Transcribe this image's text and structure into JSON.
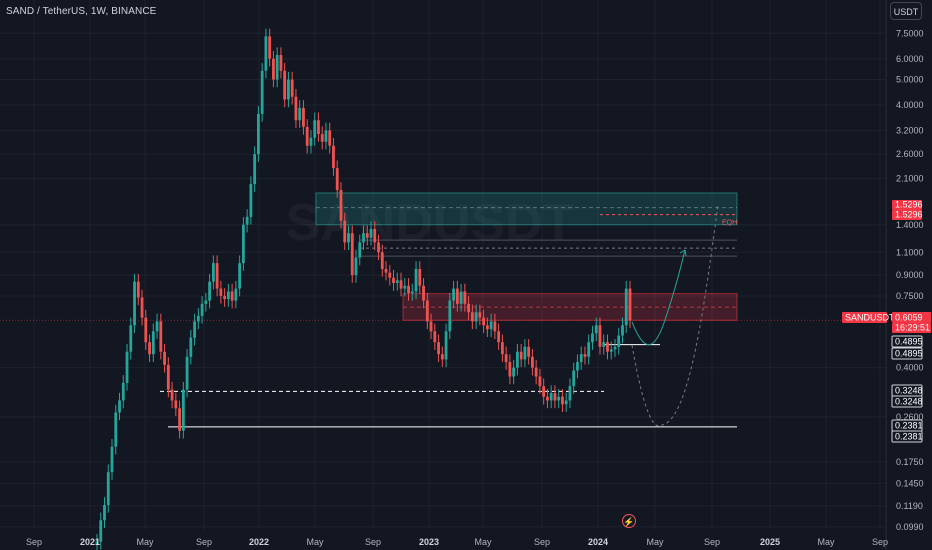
{
  "header": {
    "title": "SAND / TetherUS, 1W, BINANCE",
    "currency_button": "USDT"
  },
  "colors": {
    "up": "#26a69a",
    "down": "#ef5350",
    "background": "#131722",
    "supply_zone": "#26a69a",
    "demand_zone": "#f23645"
  },
  "chart_data": {
    "type": "candlestick",
    "symbol": "SANDUSDT",
    "y_scale": "log",
    "ylim": [
      0.0875,
      9.2
    ],
    "y_ticks": [
      "7.5000",
      "6.0000",
      "5.0000",
      "4.0000",
      "3.2000",
      "2.6000",
      "2.1000",
      "1.4000",
      "1.1000",
      "0.9000",
      "0.7500",
      "0.4000",
      "0.2600",
      "0.1750",
      "0.1450",
      "0.1190",
      "0.0990"
    ],
    "x_ticks": [
      {
        "label": "Sep",
        "year": false
      },
      {
        "label": "2021",
        "year": true
      },
      {
        "label": "May",
        "year": false
      },
      {
        "label": "Sep",
        "year": false
      },
      {
        "label": "2022",
        "year": true
      },
      {
        "label": "May",
        "year": false
      },
      {
        "label": "Sep",
        "year": false
      },
      {
        "label": "2023",
        "year": true
      },
      {
        "label": "May",
        "year": false
      },
      {
        "label": "Sep",
        "year": false
      },
      {
        "label": "2024",
        "year": true
      },
      {
        "label": "May",
        "year": false
      },
      {
        "label": "Sep",
        "year": false
      },
      {
        "label": "2025",
        "year": true
      },
      {
        "label": "May",
        "year": false
      },
      {
        "label": "Sep",
        "year": false
      }
    ],
    "price_tags": [
      {
        "value": "1.5296",
        "style": "red"
      },
      {
        "value": "1.5296",
        "style": "red"
      },
      {
        "value": "SANDUSDT",
        "style": "red"
      },
      {
        "value": "0.6059",
        "style": "red"
      },
      {
        "value": "16:29:51",
        "style": "red"
      },
      {
        "value": "0.4895",
        "style": "white"
      },
      {
        "value": "0.4895",
        "style": "white"
      },
      {
        "value": "0.3248",
        "style": "white"
      },
      {
        "value": "0.3248",
        "style": "white"
      },
      {
        "value": "0.2381",
        "style": "white"
      },
      {
        "value": "0.2381",
        "style": "white"
      }
    ],
    "annotation": "EQH",
    "current_price": 0.6059,
    "levels": [
      {
        "value": 1.5296,
        "style": "dashed-red"
      },
      {
        "value": 1.14,
        "style": "dashed-gray"
      },
      {
        "value": 0.4895,
        "style": "solid-white"
      },
      {
        "value": 0.3248,
        "style": "dashed-white"
      },
      {
        "value": 0.2381,
        "style": "solid-white"
      }
    ],
    "zones": [
      {
        "name": "supply",
        "low": 1.4,
        "high": 1.85
      },
      {
        "name": "resistance",
        "low": 0.6059,
        "high": 0.765
      }
    ],
    "price_path": [
      [
        0.085,
        0.087
      ],
      [
        0.087,
        0.105
      ],
      [
        0.105,
        0.12
      ],
      [
        0.12,
        0.16
      ],
      [
        0.16,
        0.2
      ],
      [
        0.2,
        0.27
      ],
      [
        0.27,
        0.3
      ],
      [
        0.3,
        0.35
      ],
      [
        0.35,
        0.46
      ],
      [
        0.46,
        0.58
      ],
      [
        0.58,
        0.85
      ],
      [
        0.85,
        0.74
      ],
      [
        0.74,
        0.62
      ],
      [
        0.62,
        0.5
      ],
      [
        0.5,
        0.45
      ],
      [
        0.45,
        0.55
      ],
      [
        0.55,
        0.6
      ],
      [
        0.6,
        0.46
      ],
      [
        0.46,
        0.41
      ],
      [
        0.41,
        0.33
      ],
      [
        0.33,
        0.3
      ],
      [
        0.3,
        0.28
      ],
      [
        0.28,
        0.23
      ],
      [
        0.23,
        0.33
      ],
      [
        0.33,
        0.44
      ],
      [
        0.44,
        0.52
      ],
      [
        0.52,
        0.6
      ],
      [
        0.6,
        0.63
      ],
      [
        0.63,
        0.7
      ],
      [
        0.7,
        0.72
      ],
      [
        0.72,
        0.85
      ],
      [
        0.85,
        1.0
      ],
      [
        1.0,
        0.8
      ],
      [
        0.8,
        0.75
      ],
      [
        0.75,
        0.73
      ],
      [
        0.73,
        0.78
      ],
      [
        0.78,
        0.72
      ],
      [
        0.72,
        0.8
      ],
      [
        0.8,
        1.0
      ],
      [
        1.0,
        1.4
      ],
      [
        1.4,
        1.5
      ],
      [
        1.5,
        2.0
      ],
      [
        2.0,
        2.6
      ],
      [
        2.6,
        3.7
      ],
      [
        3.7,
        5.4
      ],
      [
        5.4,
        7.3
      ],
      [
        7.3,
        6.0
      ],
      [
        6.0,
        5.0
      ],
      [
        5.0,
        6.2
      ],
      [
        6.2,
        5.4
      ],
      [
        5.4,
        4.2
      ],
      [
        4.2,
        5.0
      ],
      [
        5.0,
        4.3
      ],
      [
        4.3,
        3.5
      ],
      [
        3.5,
        3.9
      ],
      [
        3.9,
        3.3
      ],
      [
        3.3,
        2.8
      ],
      [
        2.8,
        3.0
      ],
      [
        3.0,
        3.5
      ],
      [
        3.5,
        3.1
      ],
      [
        3.1,
        2.9
      ],
      [
        2.9,
        3.2
      ],
      [
        3.2,
        2.8
      ],
      [
        2.8,
        2.3
      ],
      [
        2.3,
        1.9
      ],
      [
        1.9,
        1.45
      ],
      [
        1.45,
        1.2
      ],
      [
        1.2,
        1.3
      ],
      [
        1.3,
        0.9
      ],
      [
        0.9,
        1.05
      ],
      [
        1.05,
        1.2
      ],
      [
        1.2,
        1.3
      ],
      [
        1.3,
        1.25
      ],
      [
        1.25,
        1.35
      ],
      [
        1.35,
        1.2
      ],
      [
        1.2,
        1.1
      ],
      [
        1.1,
        0.95
      ],
      [
        0.95,
        0.92
      ],
      [
        0.92,
        0.88
      ],
      [
        0.88,
        0.84
      ],
      [
        0.84,
        0.86
      ],
      [
        0.86,
        0.8
      ],
      [
        0.8,
        0.82
      ],
      [
        0.82,
        0.77
      ],
      [
        0.77,
        0.78
      ],
      [
        0.78,
        0.95
      ],
      [
        0.95,
        0.82
      ],
      [
        0.82,
        0.72
      ],
      [
        0.72,
        0.6
      ],
      [
        0.6,
        0.55
      ],
      [
        0.55,
        0.5
      ],
      [
        0.5,
        0.45
      ],
      [
        0.45,
        0.43
      ],
      [
        0.43,
        0.55
      ],
      [
        0.55,
        0.72
      ],
      [
        0.72,
        0.8
      ],
      [
        0.8,
        0.7
      ],
      [
        0.7,
        0.78
      ],
      [
        0.78,
        0.7
      ],
      [
        0.7,
        0.65
      ],
      [
        0.65,
        0.6
      ],
      [
        0.6,
        0.65
      ],
      [
        0.65,
        0.62
      ],
      [
        0.62,
        0.58
      ],
      [
        0.58,
        0.56
      ],
      [
        0.56,
        0.6
      ],
      [
        0.6,
        0.55
      ],
      [
        0.55,
        0.5
      ],
      [
        0.5,
        0.45
      ],
      [
        0.45,
        0.42
      ],
      [
        0.42,
        0.37
      ],
      [
        0.37,
        0.4
      ],
      [
        0.4,
        0.46
      ],
      [
        0.46,
        0.43
      ],
      [
        0.43,
        0.48
      ],
      [
        0.48,
        0.44
      ],
      [
        0.44,
        0.4
      ],
      [
        0.4,
        0.37
      ],
      [
        0.37,
        0.34
      ],
      [
        0.34,
        0.31
      ],
      [
        0.31,
        0.3
      ],
      [
        0.3,
        0.32
      ],
      [
        0.32,
        0.3
      ],
      [
        0.3,
        0.31
      ],
      [
        0.31,
        0.29
      ],
      [
        0.29,
        0.3
      ],
      [
        0.3,
        0.34
      ],
      [
        0.34,
        0.39
      ],
      [
        0.39,
        0.42
      ],
      [
        0.42,
        0.45
      ],
      [
        0.45,
        0.44
      ],
      [
        0.44,
        0.5
      ],
      [
        0.5,
        0.54
      ],
      [
        0.54,
        0.58
      ],
      [
        0.58,
        0.48
      ],
      [
        0.48,
        0.5
      ],
      [
        0.5,
        0.46
      ],
      [
        0.46,
        0.47
      ],
      [
        0.47,
        0.48
      ],
      [
        0.48,
        0.53
      ],
      [
        0.53,
        0.58
      ],
      [
        0.58,
        0.8
      ],
      [
        0.8,
        0.6059
      ]
    ]
  }
}
